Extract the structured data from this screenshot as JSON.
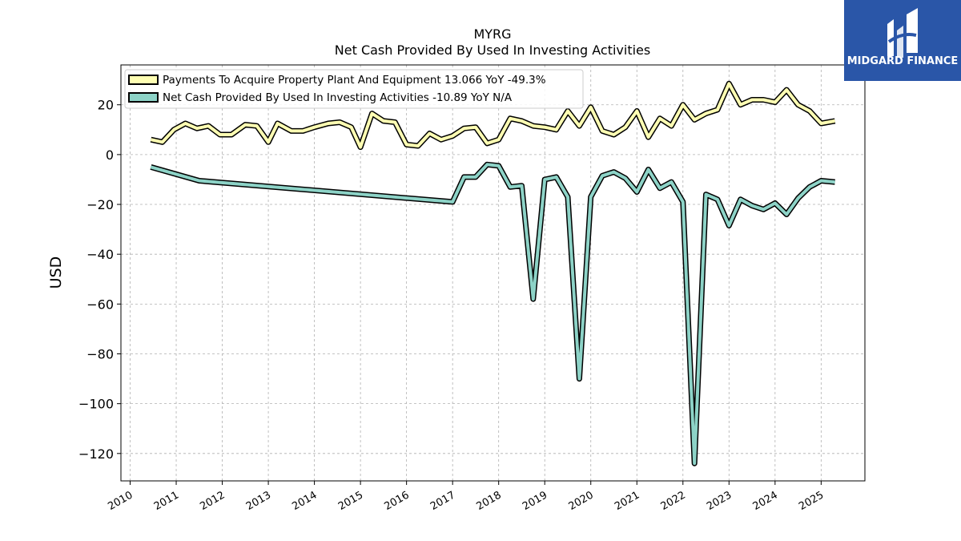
{
  "chart_data": {
    "type": "line",
    "title": "MYRG",
    "subtitle": "Net Cash Provided By Used In Investing Activities",
    "ylabel": "USD",
    "xlabel": "",
    "ylim": [
      -131,
      36
    ],
    "xlim": [
      2009.8,
      2025.95
    ],
    "yticks": [
      20,
      0,
      -20,
      -40,
      -60,
      -80,
      -100,
      -120
    ],
    "ytick_labels": [
      "20",
      "0",
      "−20",
      "−40",
      "−60",
      "−80",
      "−100",
      "−120"
    ],
    "xticks": [
      2010,
      2011,
      2012,
      2013,
      2014,
      2015,
      2016,
      2017,
      2018,
      2019,
      2020,
      2021,
      2022,
      2023,
      2024,
      2025
    ],
    "xtick_labels": [
      "2010",
      "2011",
      "2012",
      "2013",
      "2014",
      "2015",
      "2016",
      "2017",
      "2018",
      "2019",
      "2020",
      "2021",
      "2022",
      "2023",
      "2024",
      "2025"
    ],
    "grid": true,
    "legend_position": "top-left",
    "series": [
      {
        "name": "Payments To Acquire Property Plant And Equipment  13.066 YoY -49.3%",
        "color": "#ffffb3",
        "points": [
          [
            2010.45,
            6
          ],
          [
            2010.7,
            5
          ],
          [
            2010.95,
            10
          ],
          [
            2011.2,
            12.5
          ],
          [
            2011.45,
            10.5
          ],
          [
            2011.7,
            11.5
          ],
          [
            2011.95,
            8
          ],
          [
            2012.2,
            8
          ],
          [
            2012.5,
            12
          ],
          [
            2012.75,
            11.5
          ],
          [
            2013.0,
            5
          ],
          [
            2013.2,
            12.5
          ],
          [
            2013.5,
            9.5
          ],
          [
            2013.75,
            9.5
          ],
          [
            2014.0,
            11
          ],
          [
            2014.3,
            12.5
          ],
          [
            2014.55,
            13
          ],
          [
            2014.8,
            11
          ],
          [
            2015.0,
            3
          ],
          [
            2015.25,
            16.5
          ],
          [
            2015.5,
            13.5
          ],
          [
            2015.75,
            13
          ],
          [
            2016.0,
            4
          ],
          [
            2016.25,
            3.5
          ],
          [
            2016.5,
            8.5
          ],
          [
            2016.75,
            6
          ],
          [
            2017.0,
            7.5
          ],
          [
            2017.25,
            10.5
          ],
          [
            2017.5,
            11
          ],
          [
            2017.75,
            4.5
          ],
          [
            2018.0,
            6
          ],
          [
            2018.25,
            14.5
          ],
          [
            2018.5,
            13.5
          ],
          [
            2018.75,
            11.5
          ],
          [
            2019.0,
            11
          ],
          [
            2019.25,
            10
          ],
          [
            2019.5,
            17.5
          ],
          [
            2019.75,
            11.5
          ],
          [
            2020.0,
            19
          ],
          [
            2020.25,
            9.5
          ],
          [
            2020.5,
            8
          ],
          [
            2020.75,
            11
          ],
          [
            2021.0,
            17.5
          ],
          [
            2021.25,
            7
          ],
          [
            2021.5,
            14.5
          ],
          [
            2021.75,
            11.5
          ],
          [
            2022.0,
            20
          ],
          [
            2022.25,
            14
          ],
          [
            2022.5,
            16.5
          ],
          [
            2022.75,
            18
          ],
          [
            2023.0,
            28.5
          ],
          [
            2023.25,
            20
          ],
          [
            2023.5,
            22
          ],
          [
            2023.75,
            22
          ],
          [
            2024.0,
            21
          ],
          [
            2024.25,
            26
          ],
          [
            2024.5,
            20
          ],
          [
            2024.75,
            17.5
          ],
          [
            2025.0,
            12.5
          ],
          [
            2025.3,
            13.5
          ]
        ]
      },
      {
        "name": "Net Cash Provided By Used In Investing Activities  -10.89 YoY N/A",
        "color": "#8dd3c7",
        "points": [
          [
            2010.45,
            -5
          ],
          [
            2011.5,
            -10.5
          ],
          [
            2017.0,
            -19
          ],
          [
            2017.25,
            -9
          ],
          [
            2017.5,
            -9
          ],
          [
            2017.75,
            -4
          ],
          [
            2018.0,
            -4.5
          ],
          [
            2018.25,
            -13
          ],
          [
            2018.5,
            -12.5
          ],
          [
            2018.75,
            -58
          ],
          [
            2019.0,
            -10
          ],
          [
            2019.25,
            -9
          ],
          [
            2019.5,
            -17
          ],
          [
            2019.75,
            -90
          ],
          [
            2020.0,
            -17
          ],
          [
            2020.25,
            -8.5
          ],
          [
            2020.5,
            -7
          ],
          [
            2020.75,
            -9.5
          ],
          [
            2021.0,
            -15
          ],
          [
            2021.25,
            -6
          ],
          [
            2021.5,
            -13.5
          ],
          [
            2021.75,
            -11
          ],
          [
            2022.0,
            -19
          ],
          [
            2022.25,
            -124
          ],
          [
            2022.5,
            -16
          ],
          [
            2022.75,
            -18
          ],
          [
            2023.0,
            -28.5
          ],
          [
            2023.25,
            -18
          ],
          [
            2023.5,
            -20.5
          ],
          [
            2023.75,
            -22
          ],
          [
            2024.0,
            -19.5
          ],
          [
            2024.25,
            -24
          ],
          [
            2024.5,
            -17.5
          ],
          [
            2024.75,
            -13
          ],
          [
            2025.0,
            -10.5
          ],
          [
            2025.3,
            -11
          ]
        ]
      }
    ]
  },
  "logo": {
    "text": "MIDGARD FINANCE",
    "background": "#2a56a8"
  }
}
